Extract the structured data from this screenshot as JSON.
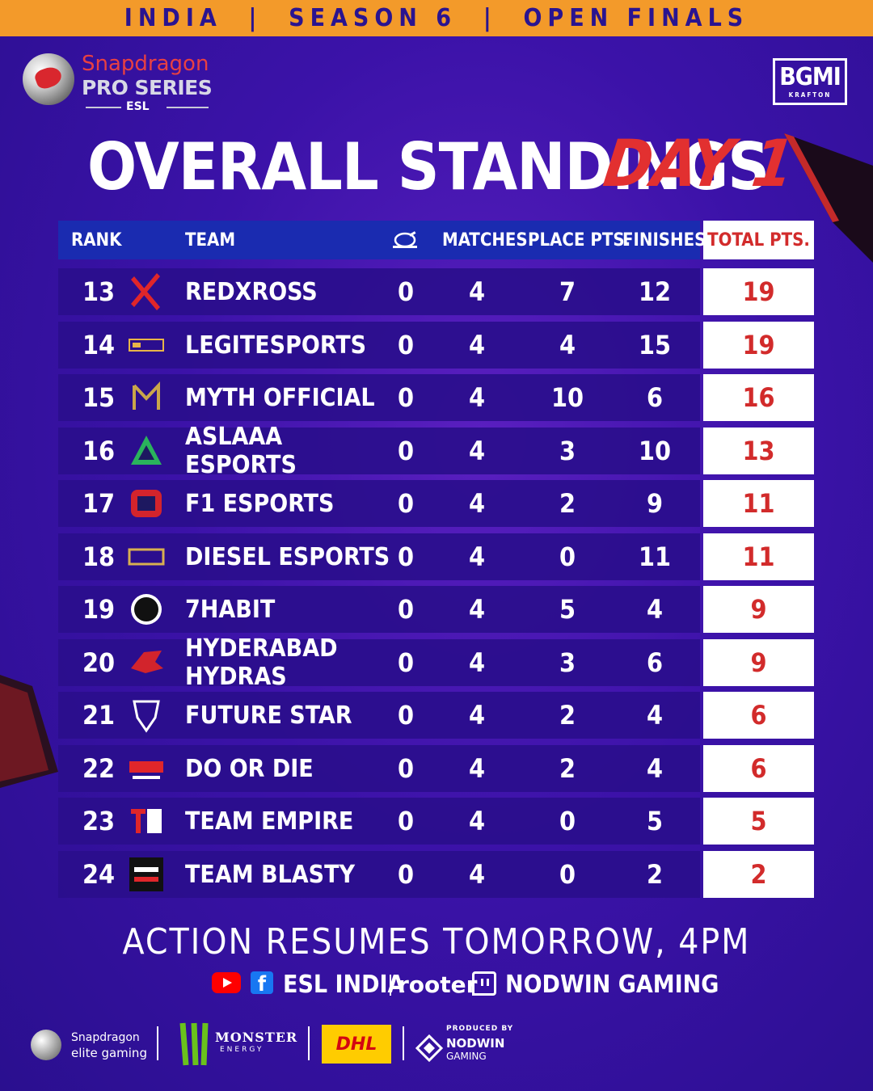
{
  "header": {
    "banner": "INDIA  |  SEASON 6  |  OPEN FINALS"
  },
  "brand": {
    "snapdragon": "Snapdragon",
    "pro_series": "PRO SERIES",
    "esl": "ESL",
    "bgmi": "BGMI",
    "krafton": "KRAFTON"
  },
  "title": {
    "main": "OVERALL STANDINGS",
    "day": "DAY 1"
  },
  "table": {
    "columns": {
      "rank": "RANK",
      "team": "TEAM",
      "chicken_icon": "chicken-dinner-icon",
      "matches": "MATCHES",
      "place_pts": "PLACE PTS.",
      "finishes": "FINISHES",
      "total_pts": "TOTAL PTS."
    },
    "rows": [
      {
        "rank": "13",
        "team": "REDXROSS",
        "wins": "0",
        "matches": "4",
        "place": "7",
        "finishes": "12",
        "total": "19"
      },
      {
        "rank": "14",
        "team": "LEGITESPORTS",
        "wins": "0",
        "matches": "4",
        "place": "4",
        "finishes": "15",
        "total": "19"
      },
      {
        "rank": "15",
        "team": "MYTH OFFICIAL",
        "wins": "0",
        "matches": "4",
        "place": "10",
        "finishes": "6",
        "total": "16"
      },
      {
        "rank": "16",
        "team": "ASLAAA ESPORTS",
        "wins": "0",
        "matches": "4",
        "place": "3",
        "finishes": "10",
        "total": "13"
      },
      {
        "rank": "17",
        "team": "F1 ESPORTS",
        "wins": "0",
        "matches": "4",
        "place": "2",
        "finishes": "9",
        "total": "11"
      },
      {
        "rank": "18",
        "team": "DIESEL ESPORTS",
        "wins": "0",
        "matches": "4",
        "place": "0",
        "finishes": "11",
        "total": "11"
      },
      {
        "rank": "19",
        "team": "7HABIT",
        "wins": "0",
        "matches": "4",
        "place": "5",
        "finishes": "4",
        "total": "9"
      },
      {
        "rank": "20",
        "team": "HYDERABAD HYDRAS",
        "wins": "0",
        "matches": "4",
        "place": "3",
        "finishes": "6",
        "total": "9"
      },
      {
        "rank": "21",
        "team": "FUTURE STAR",
        "wins": "0",
        "matches": "4",
        "place": "2",
        "finishes": "4",
        "total": "6"
      },
      {
        "rank": "22",
        "team": "DO OR DIE",
        "wins": "0",
        "matches": "4",
        "place": "2",
        "finishes": "4",
        "total": "6"
      },
      {
        "rank": "23",
        "team": "TEAM EMPIRE",
        "wins": "0",
        "matches": "4",
        "place": "0",
        "finishes": "5",
        "total": "5"
      },
      {
        "rank": "24",
        "team": "TEAM BLASTY",
        "wins": "0",
        "matches": "4",
        "place": "0",
        "finishes": "2",
        "total": "2"
      }
    ]
  },
  "footer": {
    "announcement": "ACTION RESUMES TOMORROW, 4PM",
    "esl_india": "ESL INDIA",
    "rooter": "rooter",
    "nodwin_gaming": "NODWIN GAMING",
    "sponsors": {
      "snapdragon_1": "Snapdragon",
      "snapdragon_2": "elite gaming",
      "monster_1": "MONSTER",
      "monster_2": "ENERGY",
      "dhl": "DHL",
      "produced_by": "PRODUCED BY",
      "nodwin_1": "NODWIN",
      "nodwin_2": "GAMING"
    }
  },
  "colors": {
    "accent_orange": "#f39a2a",
    "header_blue": "#1a2bb0",
    "total_red": "#d22b2b",
    "background": "#3b12a8"
  }
}
